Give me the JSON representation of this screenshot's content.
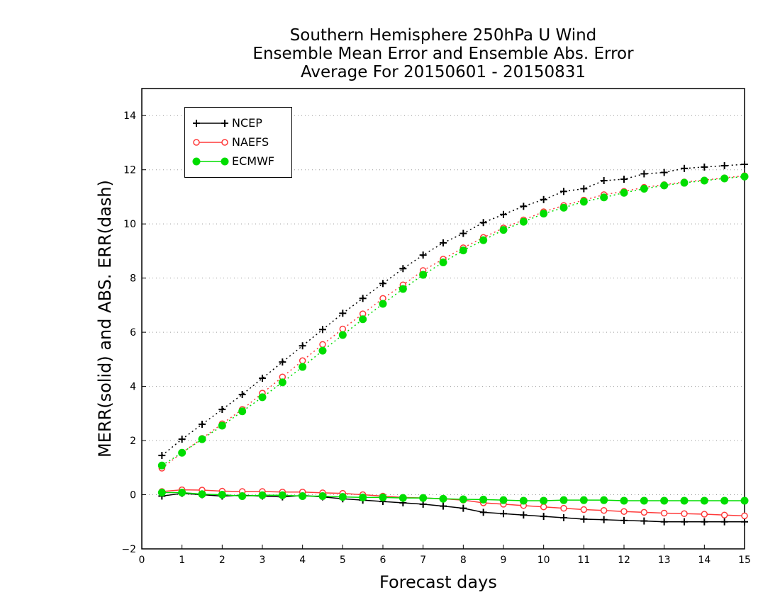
{
  "title_lines": [
    "Southern Hemisphere 250hPa U Wind",
    "Ensemble Mean Error and Ensemble Abs. Error",
    "Average For 20150601 - 20150831"
  ],
  "chart_data": {
    "type": "line",
    "title": "Southern Hemisphere 250hPa U Wind / Ensemble Mean Error and Ensemble Abs. Error / Average For 20150601 - 20150831",
    "xlabel": "Forecast days",
    "ylabel": "MERR(solid) and ABS. ERR(dash)",
    "xlim": [
      0,
      15
    ],
    "ylim": [
      -2,
      15
    ],
    "xticks": [
      0,
      1,
      2,
      3,
      4,
      5,
      6,
      7,
      8,
      9,
      10,
      11,
      12,
      13,
      14,
      15
    ],
    "yticks": [
      -2,
      0,
      2,
      4,
      6,
      8,
      10,
      12,
      14
    ],
    "grid": "horizontal dotted",
    "legend_position": "top-left",
    "x": [
      0.5,
      1,
      1.5,
      2,
      2.5,
      3,
      3.5,
      4,
      4.5,
      5,
      5.5,
      6,
      6.5,
      7,
      7.5,
      8,
      8.5,
      9,
      9.5,
      10,
      10.5,
      11,
      11.5,
      12,
      12.5,
      13,
      13.5,
      14,
      14.5,
      15
    ],
    "series": [
      {
        "name": "NCEP",
        "color": "#000000",
        "marker": "plus",
        "merr": [
          -0.05,
          0.05,
          0.0,
          -0.05,
          -0.02,
          -0.05,
          -0.08,
          -0.03,
          -0.08,
          -0.15,
          -0.2,
          -0.25,
          -0.3,
          -0.35,
          -0.42,
          -0.5,
          -0.65,
          -0.7,
          -0.75,
          -0.8,
          -0.85,
          -0.9,
          -0.92,
          -0.95,
          -0.97,
          -1.0,
          -1.0,
          -1.0,
          -1.0,
          -1.0
        ],
        "abs_err": [
          1.45,
          2.05,
          2.6,
          3.15,
          3.7,
          4.3,
          4.9,
          5.5,
          6.1,
          6.7,
          7.25,
          7.8,
          8.35,
          8.85,
          9.3,
          9.65,
          10.05,
          10.35,
          10.65,
          10.9,
          11.2,
          11.3,
          11.6,
          11.65,
          11.85,
          11.9,
          12.05,
          12.1,
          12.15,
          12.2
        ]
      },
      {
        "name": "NAEFS",
        "color": "#ff3a3a",
        "marker": "open-circle",
        "merr": [
          0.12,
          0.18,
          0.17,
          0.13,
          0.12,
          0.12,
          0.1,
          0.1,
          0.07,
          0.05,
          0.0,
          -0.05,
          -0.1,
          -0.12,
          -0.15,
          -0.2,
          -0.3,
          -0.35,
          -0.4,
          -0.45,
          -0.5,
          -0.55,
          -0.58,
          -0.62,
          -0.65,
          -0.68,
          -0.7,
          -0.72,
          -0.75,
          -0.78
        ],
        "abs_err": [
          0.98,
          1.55,
          2.08,
          2.62,
          3.15,
          3.75,
          4.35,
          4.95,
          5.55,
          6.12,
          6.68,
          7.25,
          7.75,
          8.28,
          8.7,
          9.12,
          9.5,
          9.85,
          10.15,
          10.45,
          10.68,
          10.88,
          11.08,
          11.2,
          11.35,
          11.45,
          11.55,
          11.62,
          11.7,
          11.78
        ]
      },
      {
        "name": "ECMWF",
        "color": "#00dd00",
        "marker": "filled-circle",
        "merr": [
          0.08,
          0.08,
          0.02,
          0.0,
          -0.05,
          -0.02,
          -0.02,
          -0.05,
          -0.05,
          -0.08,
          -0.1,
          -0.1,
          -0.12,
          -0.12,
          -0.15,
          -0.17,
          -0.18,
          -0.2,
          -0.22,
          -0.22,
          -0.2,
          -0.2,
          -0.2,
          -0.22,
          -0.22,
          -0.22,
          -0.22,
          -0.22,
          -0.22,
          -0.22
        ],
        "abs_err": [
          1.08,
          1.55,
          2.05,
          2.55,
          3.08,
          3.6,
          4.15,
          4.72,
          5.32,
          5.9,
          6.48,
          7.05,
          7.6,
          8.12,
          8.58,
          9.02,
          9.4,
          9.78,
          10.08,
          10.38,
          10.6,
          10.82,
          10.98,
          11.15,
          11.3,
          11.42,
          11.52,
          11.6,
          11.68,
          11.75
        ]
      }
    ]
  }
}
